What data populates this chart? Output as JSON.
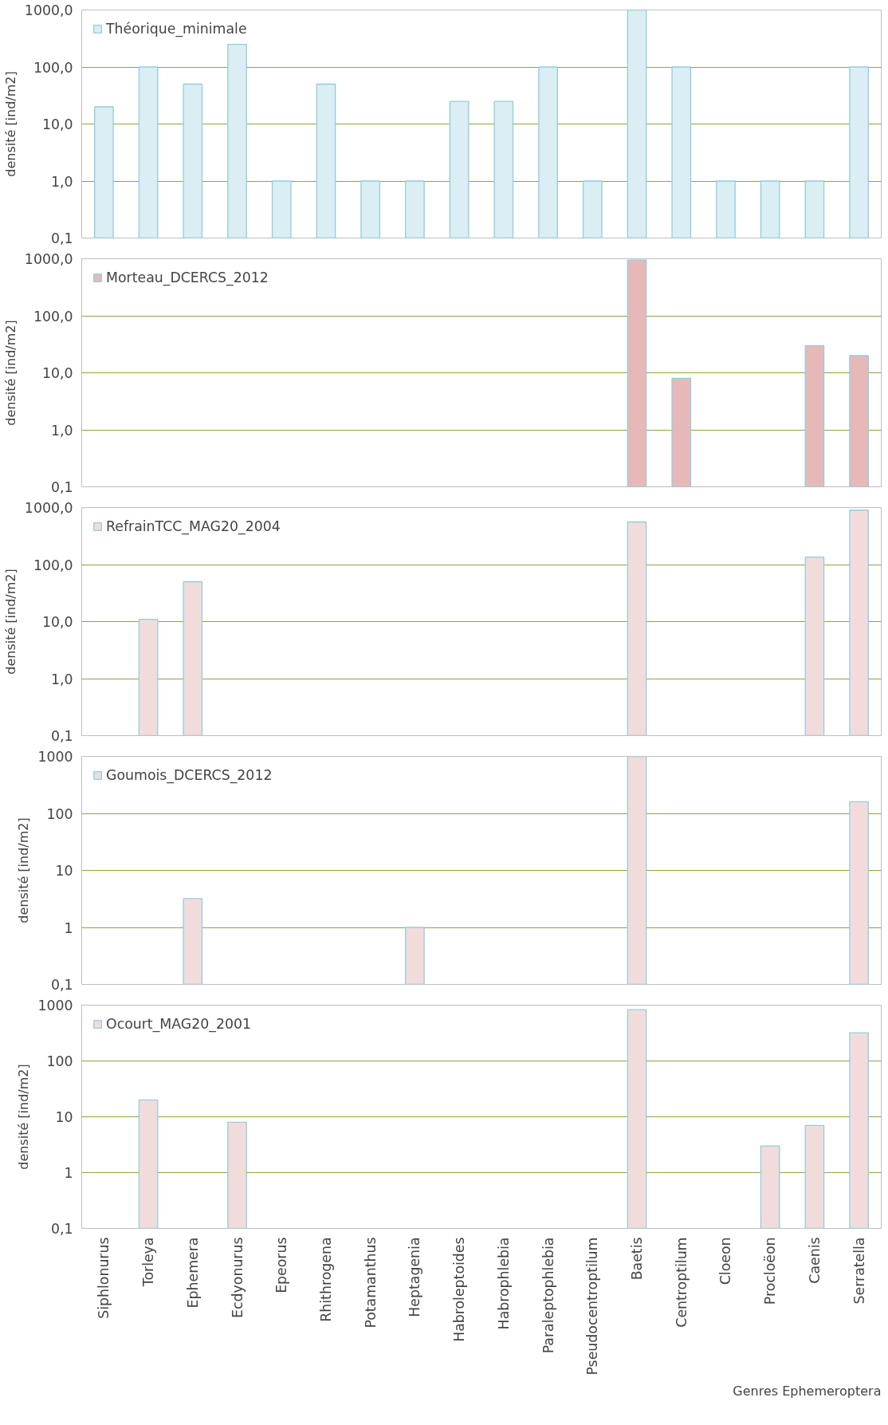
{
  "chart_data": [
    {
      "type": "bar",
      "categories": [
        null,
        null,
        null,
        null,
        null,
        null,
        null,
        null,
        null,
        null,
        null,
        null,
        null,
        null,
        null,
        null,
        null,
        null
      ],
      "ylabel": "densité [ind/m2]",
      "log": true,
      "ylim": [
        0.1,
        1000
      ],
      "yticks": [
        {
          "value": 0.1,
          "label": "0,1"
        },
        {
          "value": 1,
          "label": "1,0"
        },
        {
          "value": 10,
          "label": "10,0"
        },
        {
          "value": 100,
          "label": "100,0"
        },
        {
          "value": 1000,
          "label": "1000,0"
        }
      ],
      "grid": "y",
      "legend": "top left",
      "tick_labels": "y",
      "series": [
        {
          "name": "Théorique_minimale",
          "color": "#daeef3",
          "values": [
            20,
            100,
            50,
            250,
            1,
            50,
            1,
            1,
            25,
            25,
            100,
            1,
            1000,
            100,
            1,
            1,
            1,
            100
          ]
        }
      ]
    },
    {
      "type": "bar",
      "categories": [
        null,
        null,
        null,
        null,
        null,
        null,
        null,
        null,
        null,
        null,
        null,
        null,
        null,
        null,
        null,
        null,
        null,
        null
      ],
      "ylabel": "densité [ind/m2]",
      "log": true,
      "ylim": [
        0.1,
        1000
      ],
      "yticks": [
        {
          "value": 0.1,
          "label": "0,1"
        },
        {
          "value": 1,
          "label": "1,0"
        },
        {
          "value": 10,
          "label": "10,0"
        },
        {
          "value": 100,
          "label": "100,0"
        },
        {
          "value": 1000,
          "label": "1000,0"
        }
      ],
      "grid": "y",
      "legend": "top left",
      "tick_labels": "y",
      "series": [
        {
          "name": "Morteau_DCERCS_2012",
          "color": "#e6b9b8",
          "values": [
            null,
            null,
            null,
            null,
            null,
            null,
            null,
            null,
            null,
            null,
            null,
            null,
            950,
            8,
            null,
            null,
            30,
            20
          ]
        }
      ]
    },
    {
      "type": "bar",
      "categories": [
        null,
        null,
        null,
        null,
        null,
        null,
        null,
        null,
        null,
        null,
        null,
        null,
        null,
        null,
        null,
        null,
        null,
        null
      ],
      "ylabel": "densité [ind/m2]",
      "log": true,
      "ylim": [
        0.1,
        1000
      ],
      "yticks": [
        {
          "value": 0.1,
          "label": "0,1"
        },
        {
          "value": 1,
          "label": "1,0"
        },
        {
          "value": 10,
          "label": "10,0"
        },
        {
          "value": 100,
          "label": "100,0"
        },
        {
          "value": 1000,
          "label": "1000,0"
        }
      ],
      "grid": "y",
      "legend": "top left",
      "tick_labels": "y",
      "series": [
        {
          "name": "RefrainTCC_MAG20_2004",
          "color": "#f2dcdb",
          "values": [
            null,
            11,
            50,
            null,
            null,
            null,
            null,
            null,
            null,
            null,
            null,
            null,
            560,
            null,
            null,
            null,
            135,
            900
          ]
        }
      ]
    },
    {
      "type": "bar",
      "categories": [
        null,
        null,
        null,
        null,
        null,
        null,
        null,
        null,
        null,
        null,
        null,
        null,
        null,
        null,
        null,
        null,
        null,
        null
      ],
      "ylabel": "densité [ind/m2]",
      "log": true,
      "ylim": [
        0.1,
        1000
      ],
      "yticks": [
        {
          "value": 0.1,
          "label": "0,1"
        },
        1,
        10,
        100,
        1000
      ],
      "grid": "y",
      "legend": "top left",
      "tick_labels": "y",
      "series": [
        {
          "name": "Goumois_DCERCS_2012",
          "color": "#f2dcdb",
          "values": [
            null,
            null,
            3.2,
            null,
            null,
            null,
            null,
            1,
            null,
            null,
            null,
            null,
            1000,
            null,
            null,
            null,
            null,
            160
          ]
        }
      ]
    },
    {
      "type": "bar",
      "categories": [
        "Siphlonurus",
        "Torleya",
        "Ephemera",
        "Ecdyonurus",
        "Epeorus",
        "Rhithrogena",
        "Potamanthus",
        "Heptagenia",
        "Habroleptoides",
        "Habrophlebia",
        "Paraleptophlebia",
        "Pseudocentroptilum",
        "Baetis",
        "Centroptilum",
        "Cloeon",
        "Procloëon",
        "Caenis",
        "Serratella"
      ],
      "ylabel": "densité [ind/m2]",
      "xlabel": "Genres Ephemeroptera",
      "log": true,
      "ylim": [
        0.1,
        1000
      ],
      "yticks": [
        {
          "value": 0.1,
          "label": "0,1"
        },
        1,
        10,
        100,
        1000
      ],
      "grid": "y",
      "legend": "top left",
      "series": [
        {
          "name": "Ocourt_MAG20_2001",
          "color": "#f2dcdb",
          "values": [
            null,
            20,
            null,
            8,
            null,
            null,
            null,
            null,
            null,
            null,
            null,
            null,
            830,
            null,
            null,
            3,
            7,
            320
          ]
        }
      ]
    }
  ]
}
